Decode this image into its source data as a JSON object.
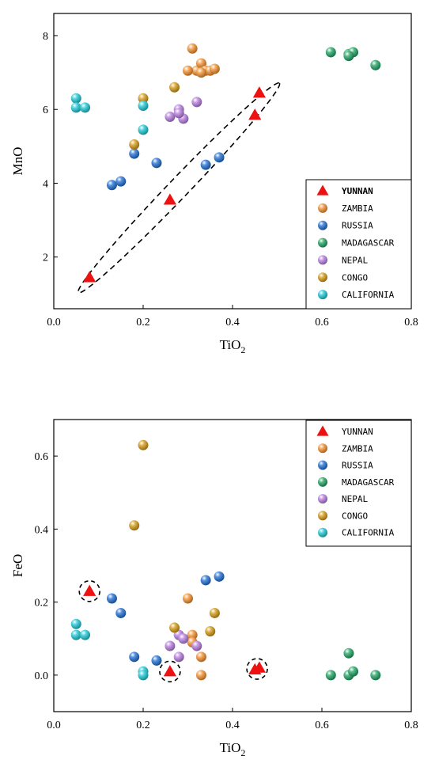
{
  "chart_data": [
    {
      "type": "scatter",
      "title": "",
      "xlabel": "TiO",
      "xlabel_sub": "2",
      "ylabel": "MnO",
      "xlim": [
        0,
        0.8
      ],
      "ylim": [
        0.6,
        8.6
      ],
      "xticks": [
        0,
        0.2,
        0.4,
        0.6,
        0.8
      ],
      "yticks": [
        2,
        4,
        6,
        8
      ],
      "xtick_labels": [
        "0.0",
        "0.2",
        "0.4",
        "0.6",
        "0.8"
      ],
      "ytick_labels": [
        "2",
        "4",
        "6",
        "8"
      ],
      "grid": false,
      "legend_position": "bottom-right",
      "series": [
        {
          "name": "ZAMBIA",
          "color": "#f5902e",
          "marker": "circle",
          "points": [
            [
              0.31,
              7.65
            ],
            [
              0.32,
              7.05
            ],
            [
              0.33,
              7.25
            ],
            [
              0.34,
              7.05
            ],
            [
              0.35,
              7.05
            ],
            [
              0.36,
              7.1
            ],
            [
              0.3,
              7.05
            ],
            [
              0.33,
              7.0
            ]
          ]
        },
        {
          "name": "RUSSIA",
          "color": "#1f6fd6",
          "marker": "circle",
          "points": [
            [
              0.13,
              3.95
            ],
            [
              0.15,
              4.05
            ],
            [
              0.18,
              4.8
            ],
            [
              0.23,
              4.55
            ],
            [
              0.34,
              4.5
            ],
            [
              0.37,
              4.7
            ]
          ]
        },
        {
          "name": "MADAGASCAR",
          "color": "#1fa463",
          "marker": "circle",
          "points": [
            [
              0.62,
              7.55
            ],
            [
              0.66,
              7.5
            ],
            [
              0.67,
              7.55
            ],
            [
              0.72,
              7.2
            ],
            [
              0.66,
              7.45
            ]
          ]
        },
        {
          "name": "NEPAL",
          "color": "#b87de0",
          "marker": "circle",
          "points": [
            [
              0.26,
              5.8
            ],
            [
              0.28,
              6.0
            ],
            [
              0.29,
              5.75
            ],
            [
              0.32,
              6.2
            ],
            [
              0.28,
              5.9
            ]
          ]
        },
        {
          "name": "CONGO",
          "color": "#d69a13",
          "marker": "circle",
          "points": [
            [
              0.18,
              5.05
            ],
            [
              0.2,
              6.3
            ],
            [
              0.27,
              6.6
            ]
          ]
        },
        {
          "name": "CALIFORNIA",
          "color": "#1cc8d6",
          "marker": "circle",
          "points": [
            [
              0.05,
              6.3
            ],
            [
              0.05,
              6.05
            ],
            [
              0.07,
              6.05
            ],
            [
              0.2,
              6.1
            ],
            [
              0.2,
              5.45
            ]
          ]
        },
        {
          "name": "YUNNAN",
          "color": "#ee1111",
          "marker": "triangle",
          "points": [
            [
              0.08,
              1.45
            ],
            [
              0.26,
              3.55
            ],
            [
              0.45,
              5.85
            ],
            [
              0.46,
              6.45
            ]
          ]
        }
      ],
      "legend_order": [
        "YUNNAN",
        "ZAMBIA",
        "RUSSIA",
        "MADAGASCAR",
        "NEPAL",
        "CONGO",
        "CALIFORNIA"
      ],
      "legend_bold": "YUNNAN",
      "annotations": [
        {
          "kind": "dashed-ellipse",
          "points": [
            [
              0.06,
              1.1
            ],
            [
              0.5,
              6.65
            ]
          ],
          "half_width": 0.028
        }
      ]
    },
    {
      "type": "scatter",
      "title": "",
      "xlabel": "TiO",
      "xlabel_sub": "2",
      "ylabel": "FeO",
      "xlim": [
        0,
        0.8
      ],
      "ylim": [
        -0.1,
        0.7
      ],
      "xticks": [
        0,
        0.2,
        0.4,
        0.6,
        0.8
      ],
      "yticks": [
        0,
        0.2,
        0.4,
        0.6
      ],
      "xtick_labels": [
        "0.0",
        "0.2",
        "0.4",
        "0.6",
        "0.8"
      ],
      "ytick_labels": [
        "0.0",
        "0.2",
        "0.4",
        "0.6"
      ],
      "grid": false,
      "legend_position": "top-right",
      "series": [
        {
          "name": "ZAMBIA",
          "color": "#f5902e",
          "marker": "circle",
          "points": [
            [
              0.3,
              0.21
            ],
            [
              0.31,
              0.11
            ],
            [
              0.33,
              0.05
            ],
            [
              0.33,
              0.0
            ],
            [
              0.31,
              0.09
            ]
          ]
        },
        {
          "name": "RUSSIA",
          "color": "#1f6fd6",
          "marker": "circle",
          "points": [
            [
              0.13,
              0.21
            ],
            [
              0.15,
              0.17
            ],
            [
              0.18,
              0.05
            ],
            [
              0.23,
              0.04
            ],
            [
              0.34,
              0.26
            ],
            [
              0.37,
              0.27
            ]
          ]
        },
        {
          "name": "MADAGASCAR",
          "color": "#1fa463",
          "marker": "circle",
          "points": [
            [
              0.62,
              0.0
            ],
            [
              0.66,
              0.0
            ],
            [
              0.66,
              0.06
            ],
            [
              0.67,
              0.01
            ],
            [
              0.72,
              0.0
            ]
          ]
        },
        {
          "name": "NEPAL",
          "color": "#b87de0",
          "marker": "circle",
          "points": [
            [
              0.26,
              0.08
            ],
            [
              0.28,
              0.11
            ],
            [
              0.29,
              0.1
            ],
            [
              0.32,
              0.08
            ],
            [
              0.28,
              0.05
            ]
          ]
        },
        {
          "name": "CONGO",
          "color": "#d69a13",
          "marker": "circle",
          "points": [
            [
              0.18,
              0.41
            ],
            [
              0.2,
              0.63
            ],
            [
              0.27,
              0.13
            ],
            [
              0.35,
              0.12
            ],
            [
              0.36,
              0.17
            ]
          ]
        },
        {
          "name": "CALIFORNIA",
          "color": "#1cc8d6",
          "marker": "circle",
          "points": [
            [
              0.05,
              0.14
            ],
            [
              0.05,
              0.11
            ],
            [
              0.07,
              0.11
            ],
            [
              0.2,
              0.01
            ],
            [
              0.2,
              0.0
            ]
          ]
        },
        {
          "name": "YUNNAN",
          "color": "#ee1111",
          "marker": "triangle",
          "points": [
            [
              0.08,
              0.23
            ],
            [
              0.26,
              0.01
            ],
            [
              0.45,
              0.015
            ],
            [
              0.46,
              0.02
            ]
          ]
        }
      ],
      "legend_order": [
        "YUNNAN",
        "ZAMBIA",
        "RUSSIA",
        "MADAGASCAR",
        "NEPAL",
        "CONGO",
        "CALIFORNIA"
      ],
      "legend_bold": "",
      "annotations": [
        {
          "kind": "dashed-circle",
          "center": [
            0.08,
            0.23
          ]
        },
        {
          "kind": "dashed-circle",
          "center": [
            0.26,
            0.01
          ]
        },
        {
          "kind": "dashed-circle",
          "center": [
            0.455,
            0.017
          ]
        }
      ]
    }
  ]
}
